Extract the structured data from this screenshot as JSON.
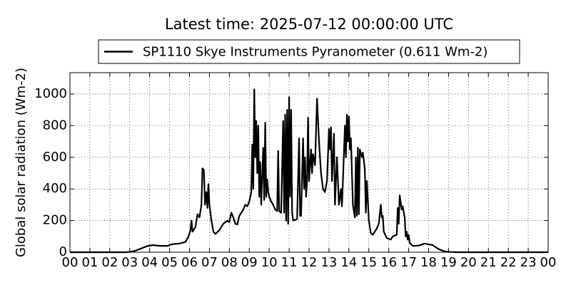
{
  "chart_data": {
    "type": "line",
    "title": "Latest time: 2025-07-12 00:00:00 UTC",
    "ylabel": "Global solar radiation (Wm-2)",
    "legend": "top",
    "grid": true,
    "xlim": [
      0,
      24
    ],
    "ylim": [
      0,
      1135
    ],
    "yticks": [
      0,
      200,
      400,
      600,
      800,
      1000
    ],
    "xticks": [
      {
        "value": 0,
        "label": "00"
      },
      {
        "value": 1,
        "label": "01"
      },
      {
        "value": 2,
        "label": "02"
      },
      {
        "value": 3,
        "label": "03"
      },
      {
        "value": 4,
        "label": "04"
      },
      {
        "value": 5,
        "label": "05"
      },
      {
        "value": 6,
        "label": "06"
      },
      {
        "value": 7,
        "label": "07"
      },
      {
        "value": 8,
        "label": "08"
      },
      {
        "value": 9,
        "label": "09"
      },
      {
        "value": 10,
        "label": "10"
      },
      {
        "value": 11,
        "label": "11"
      },
      {
        "value": 12,
        "label": "12"
      },
      {
        "value": 13,
        "label": "13"
      },
      {
        "value": 14,
        "label": "14"
      },
      {
        "value": 15,
        "label": "15"
      },
      {
        "value": 16,
        "label": "16"
      },
      {
        "value": 17,
        "label": "17"
      },
      {
        "value": 18,
        "label": "18"
      },
      {
        "value": 19,
        "label": "19"
      },
      {
        "value": 20,
        "label": "20"
      },
      {
        "value": 21,
        "label": "21"
      },
      {
        "value": 22,
        "label": "22"
      },
      {
        "value": 23,
        "label": "23"
      },
      {
        "value": 24,
        "label": "00"
      }
    ],
    "x": [
      0,
      2.8,
      3.0,
      3.3,
      3.6,
      3.9,
      4.2,
      4.5,
      4.9,
      5.1,
      5.5,
      5.8,
      5.95,
      6.05,
      6.1,
      6.15,
      6.3,
      6.4,
      6.5,
      6.6,
      6.65,
      6.72,
      6.78,
      6.85,
      6.9,
      6.95,
      7.0,
      7.1,
      7.2,
      7.3,
      7.5,
      7.7,
      7.9,
      8.0,
      8.1,
      8.2,
      8.3,
      8.4,
      8.5,
      8.7,
      8.8,
      8.9,
      9.0,
      9.1,
      9.15,
      9.2,
      9.25,
      9.3,
      9.35,
      9.4,
      9.45,
      9.5,
      9.55,
      9.6,
      9.7,
      9.75,
      9.8,
      9.85,
      9.9,
      9.95,
      10.0,
      10.1,
      10.2,
      10.3,
      10.4,
      10.45,
      10.5,
      10.6,
      10.7,
      10.75,
      10.8,
      10.85,
      10.9,
      10.95,
      11.0,
      11.05,
      11.1,
      11.15,
      11.2,
      11.4,
      11.5,
      11.55,
      11.6,
      11.7,
      11.75,
      11.8,
      11.85,
      11.9,
      11.95,
      12.0,
      12.1,
      12.15,
      12.2,
      12.3,
      12.4,
      12.5,
      12.6,
      12.7,
      12.8,
      12.9,
      13.0,
      13.05,
      13.1,
      13.15,
      13.25,
      13.3,
      13.4,
      13.5,
      13.6,
      13.65,
      13.7,
      13.8,
      13.85,
      13.9,
      13.95,
      14.0,
      14.05,
      14.1,
      14.2,
      14.3,
      14.35,
      14.4,
      14.45,
      14.5,
      14.55,
      14.65,
      14.7,
      14.75,
      14.8,
      14.85,
      14.9,
      15.0,
      15.1,
      15.2,
      15.4,
      15.5,
      15.6,
      15.65,
      15.7,
      15.75,
      15.9,
      16.1,
      16.2,
      16.4,
      16.45,
      16.5,
      16.55,
      16.65,
      16.7,
      16.8,
      16.85,
      16.9,
      16.95,
      17.0,
      17.05,
      17.2,
      17.5,
      17.8,
      18.0,
      18.2,
      18.5,
      18.8,
      19.0,
      19.5,
      24
    ],
    "series": [
      {
        "name": "SP1110 Skye Instruments Pyranometer (0.611 Wm-2)",
        "color": "#000000",
        "values": [
          0,
          0,
          2,
          10,
          25,
          40,
          45,
          40,
          40,
          50,
          55,
          65,
          100,
          140,
          200,
          130,
          160,
          240,
          220,
          300,
          530,
          520,
          300,
          380,
          280,
          430,
          300,
          200,
          130,
          115,
          140,
          180,
          200,
          190,
          250,
          220,
          180,
          175,
          230,
          270,
          300,
          290,
          320,
          380,
          680,
          400,
          1030,
          600,
          830,
          500,
          800,
          350,
          570,
          300,
          660,
          330,
          820,
          350,
          460,
          380,
          350,
          320,
          300,
          270,
          260,
          640,
          260,
          250,
          830,
          250,
          870,
          200,
          900,
          180,
          980,
          350,
          900,
          250,
          200,
          210,
          720,
          230,
          230,
          720,
          400,
          600,
          350,
          450,
          850,
          450,
          650,
          500,
          620,
          550,
          970,
          700,
          500,
          400,
          380,
          450,
          780,
          650,
          790,
          450,
          750,
          300,
          600,
          300,
          400,
          290,
          450,
          800,
          600,
          870,
          700,
          860,
          650,
          720,
          300,
          220,
          600,
          230,
          660,
          240,
          650,
          600,
          630,
          580,
          520,
          250,
          450,
          200,
          120,
          110,
          150,
          180,
          300,
          220,
          230,
          130,
          90,
          80,
          100,
          110,
          280,
          180,
          360,
          270,
          290,
          220,
          100,
          130,
          80,
          110,
          60,
          40,
          42,
          55,
          50,
          45,
          20,
          5,
          2,
          0,
          0
        ]
      }
    ]
  }
}
